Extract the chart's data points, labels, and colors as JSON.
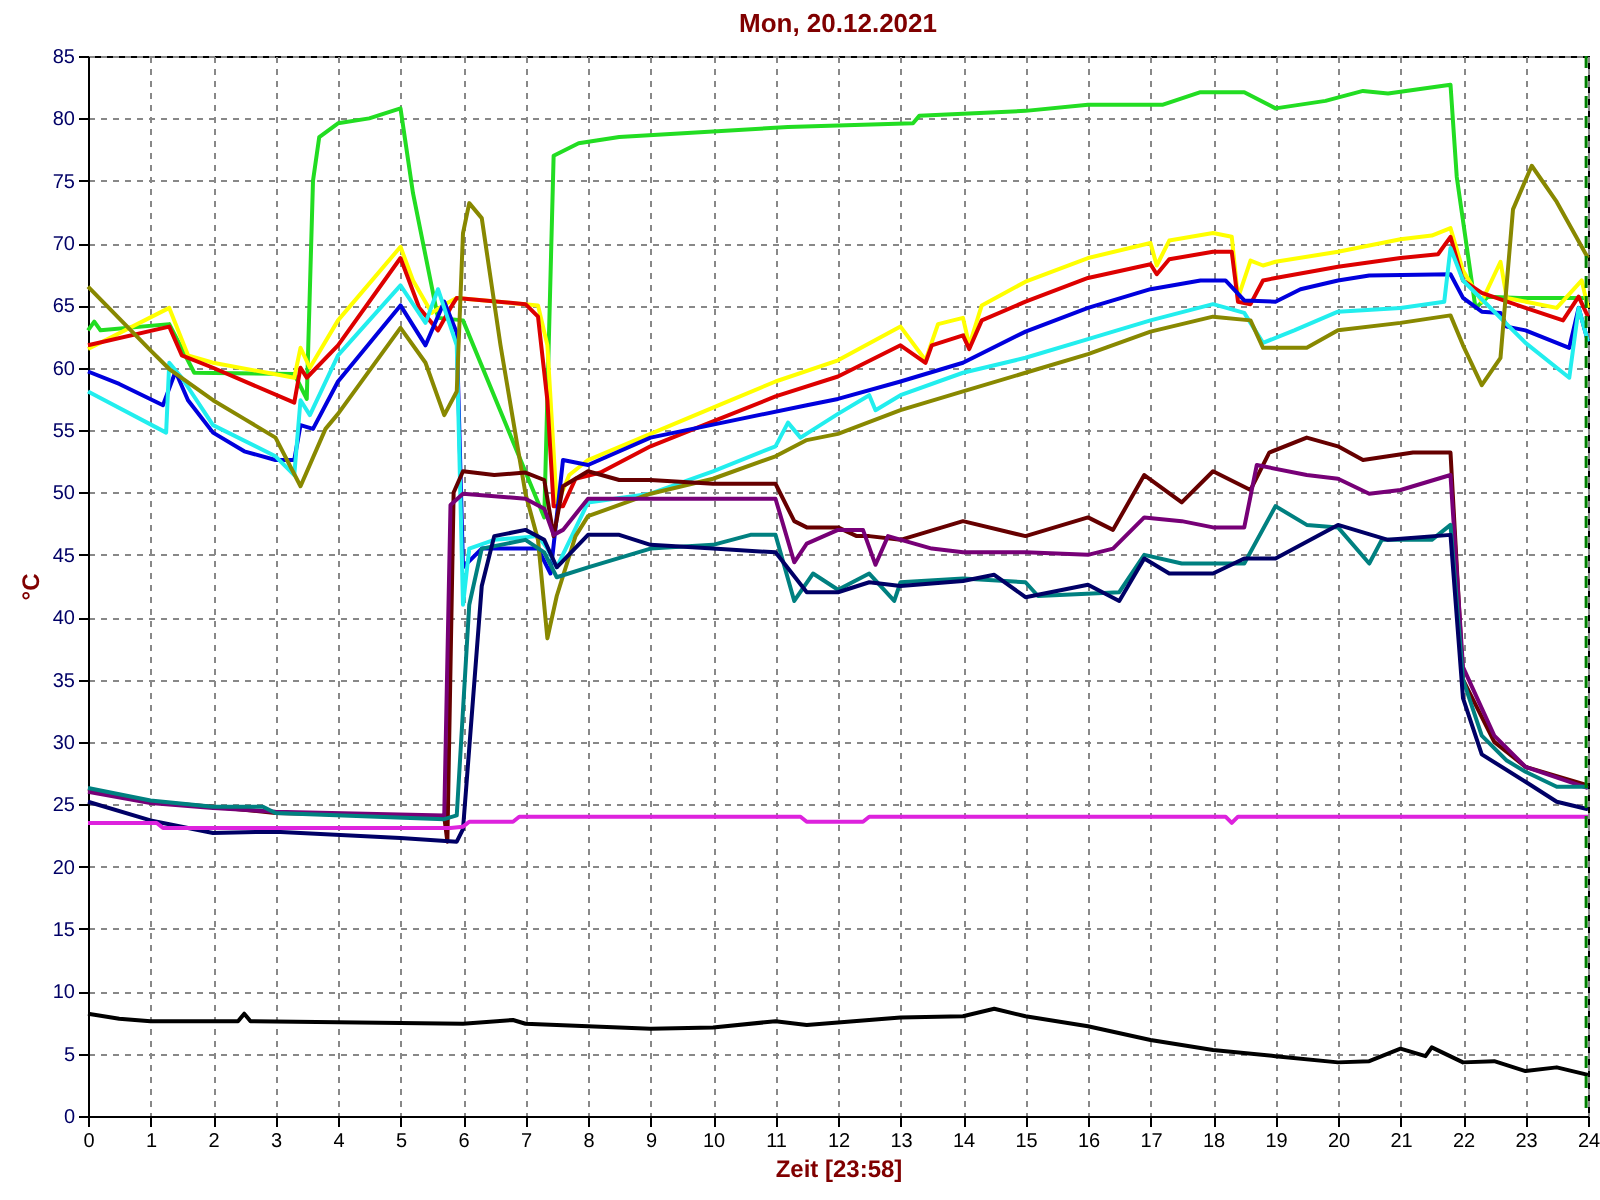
{
  "chart_data": {
    "type": "line",
    "title": "Mon, 20.12.2021",
    "xlabel": "Zeit [23:58]",
    "ylabel": "°C",
    "xlim": [
      0,
      24
    ],
    "xticks": [
      0,
      1,
      2,
      3,
      4,
      5,
      6,
      7,
      8,
      9,
      10,
      11,
      12,
      13,
      14,
      15,
      16,
      17,
      18,
      19,
      20,
      21,
      22,
      23,
      24
    ],
    "ylim": [
      0,
      85
    ],
    "yticks": [
      0,
      5,
      10,
      15,
      20,
      25,
      30,
      35,
      40,
      45,
      50,
      55,
      60,
      65,
      70,
      75,
      80,
      85
    ],
    "grid": true,
    "legend": false,
    "marker": "none",
    "line_style": "solid",
    "ref_lines": [
      {
        "axis": "x",
        "value": 23.97,
        "color": "#008000",
        "line_style": "dashed"
      }
    ],
    "series": [
      {
        "color": "#22dd22",
        "x": [
          0,
          0.1,
          0.2,
          1.3,
          1.7,
          3.3,
          3.5,
          3.6,
          3.7,
          4,
          4.5,
          5,
          5.2,
          5.6,
          6,
          7.3,
          7.45,
          7.85,
          8.5,
          11.2,
          13.2,
          13.3,
          15,
          16,
          17.2,
          17.8,
          18.5,
          19,
          19.8,
          20.4,
          20.8,
          21.8,
          21.9,
          22.2,
          22.4,
          22.9,
          23.9,
          24
        ],
        "values": [
          63,
          63.7,
          63,
          63.5,
          59.6,
          59.5,
          57.5,
          75,
          78.5,
          79.6,
          80,
          80.8,
          74,
          64,
          63.8,
          48,
          77,
          78,
          78.5,
          79.3,
          79.6,
          80.2,
          80.6,
          81.1,
          81.1,
          82.1,
          82.1,
          80.8,
          81.4,
          82.2,
          82,
          82.7,
          75.3,
          64.8,
          65.7,
          65.6,
          65.6,
          65.6
        ]
      },
      {
        "color": "#ffff00",
        "x": [
          0,
          1.3,
          1.6,
          2,
          3.3,
          3.4,
          3.55,
          4,
          5,
          5.2,
          5.5,
          5.75,
          5.9,
          7.2,
          7.35,
          7.5,
          7.7,
          8,
          9,
          10,
          11,
          12,
          13,
          13.4,
          13.6,
          14,
          14.1,
          14.3,
          15,
          16,
          17,
          17.1,
          17.3,
          18,
          18.3,
          18.4,
          18.6,
          18.8,
          19,
          20,
          21,
          21.5,
          21.8,
          22,
          22.3,
          22.6,
          22.7,
          23.5,
          23.9,
          24
        ],
        "values": [
          61.5,
          64.8,
          61,
          60.4,
          59.2,
          61.6,
          60,
          63.8,
          69.7,
          67,
          64.4,
          65.2,
          65.6,
          65,
          61.8,
          49,
          51.4,
          52.6,
          54.7,
          56.8,
          58.9,
          60.6,
          63.3,
          60.6,
          63.5,
          64,
          61.8,
          65,
          66.9,
          68.8,
          70,
          68.2,
          70.2,
          70.8,
          70.5,
          65.6,
          68.6,
          68.2,
          68.5,
          69.3,
          70.3,
          70.6,
          71.2,
          67.8,
          65.3,
          68.5,
          65.6,
          64.8,
          67,
          64.8
        ]
      },
      {
        "color": "#dd0000",
        "x": [
          0,
          1.3,
          1.5,
          2,
          3.3,
          3.4,
          3.5,
          4,
          5,
          5.3,
          5.6,
          5.8,
          5.9,
          7,
          7.2,
          7.35,
          7.45,
          7.6,
          7.8,
          8.2,
          9,
          10,
          11,
          12,
          13,
          13.4,
          13.5,
          14,
          14.1,
          14.3,
          15,
          16,
          17,
          17.1,
          17.3,
          18,
          18.3,
          18.4,
          18.6,
          18.8,
          19,
          20,
          21,
          21.6,
          21.8,
          22,
          22.3,
          23,
          23.6,
          23.85,
          24
        ],
        "values": [
          61.8,
          63.3,
          61,
          60,
          57.2,
          60,
          59.2,
          61.8,
          68.8,
          64.8,
          63,
          64.8,
          65.6,
          65.1,
          64.1,
          57.4,
          48.9,
          48.9,
          51.1,
          51.6,
          53.7,
          55.7,
          57.7,
          59.3,
          61.8,
          60.4,
          61.8,
          62.6,
          61.5,
          63.8,
          65.3,
          67.2,
          68.3,
          67.5,
          68.7,
          69.3,
          69.3,
          65.3,
          65.1,
          67,
          67.2,
          68.1,
          68.8,
          69.1,
          70.5,
          67,
          66,
          64.8,
          63.8,
          65.7,
          64.1
        ]
      },
      {
        "color": "#0000dd",
        "x": [
          0,
          0.5,
          1.2,
          1.4,
          1.6,
          2,
          2.5,
          3,
          3.3,
          3.4,
          3.6,
          4,
          5,
          5.4,
          5.7,
          5.9,
          6,
          6.3,
          7.2,
          7.4,
          7.6,
          8,
          9,
          11.5,
          12,
          13,
          14,
          15,
          16,
          17,
          17.8,
          18.2,
          18.5,
          19,
          19.4,
          20,
          20.5,
          21.8,
          22,
          22.3,
          22.6,
          22.7,
          23,
          23.7,
          23.85,
          24
        ],
        "values": [
          59.7,
          58.7,
          57,
          59.7,
          57.4,
          54.8,
          53.3,
          52.6,
          52.6,
          55.4,
          55.1,
          58.9,
          65,
          61.8,
          65.3,
          62.8,
          44,
          45.5,
          45.5,
          43.5,
          52.6,
          52.2,
          54.4,
          57,
          57.5,
          58.9,
          60.4,
          62.9,
          64.8,
          66.3,
          67,
          67,
          65.4,
          65.3,
          66.3,
          67,
          67.4,
          67.5,
          65.6,
          64.5,
          64.4,
          63.3,
          63,
          61.6,
          64.8,
          62.1
        ]
      },
      {
        "color": "#22eeee",
        "x": [
          0,
          1.25,
          1.3,
          1.5,
          2,
          3,
          3.3,
          3.4,
          3.55,
          4,
          5,
          5.4,
          5.6,
          5.8,
          5.9,
          6,
          6.1,
          6.5,
          7.2,
          7.35,
          7.5,
          8,
          9,
          10,
          11,
          11.2,
          11.4,
          12,
          12.5,
          12.6,
          13,
          14,
          15,
          16,
          17,
          18,
          18.5,
          18.8,
          19.3,
          20,
          21,
          21.7,
          21.8,
          22,
          23,
          23.7,
          23.85,
          24
        ],
        "values": [
          58.1,
          54.8,
          60.4,
          59.2,
          55.4,
          52.9,
          51.4,
          57.4,
          56.2,
          61,
          66.6,
          63.6,
          66.3,
          63.3,
          61.8,
          41,
          45.5,
          46.2,
          46.5,
          45.5,
          44,
          49.2,
          49.9,
          51.7,
          53.7,
          55.6,
          54.4,
          56.3,
          57.8,
          56.6,
          57.8,
          59.6,
          60.8,
          62.3,
          63.8,
          65.1,
          64.4,
          62,
          63,
          64.5,
          64.8,
          65.3,
          69.6,
          67,
          62,
          59.2,
          64.8,
          62.1
        ]
      },
      {
        "color": "#888800",
        "x": [
          0,
          1,
          1.3,
          2,
          2.5,
          3,
          3.4,
          3.8,
          4,
          5,
          5.4,
          5.7,
          5.9,
          6,
          6.1,
          6.3,
          6.6,
          7,
          7.2,
          7.35,
          7.5,
          7.8,
          8,
          9,
          10,
          11,
          11.5,
          12,
          13,
          14,
          15,
          16,
          17,
          18,
          18.6,
          18.8,
          19.5,
          20,
          21,
          21.8,
          22,
          22.3,
          22.6,
          22.8,
          23.1,
          23.5,
          24
        ],
        "values": [
          66.5,
          61.4,
          59.9,
          57.4,
          55.9,
          54.4,
          50.5,
          55.1,
          56.3,
          63.2,
          60.4,
          56.2,
          58.1,
          70.8,
          73.2,
          72,
          61.8,
          49.9,
          46.2,
          38.3,
          41.7,
          46.5,
          48.1,
          49.9,
          51.1,
          52.9,
          54.2,
          54.7,
          56.6,
          58.1,
          59.6,
          61.1,
          62.9,
          64.1,
          63.8,
          61.6,
          61.6,
          63,
          63.6,
          64.2,
          61.8,
          58.6,
          60.8,
          72.7,
          76.2,
          73.3,
          68.8
        ]
      },
      {
        "color": "#660000",
        "x": [
          0,
          1,
          2,
          3,
          5.7,
          5.75,
          5.85,
          6,
          6.5,
          7,
          7.3,
          7.45,
          7.6,
          8,
          8.5,
          9,
          10,
          11,
          11.3,
          11.5,
          12,
          12.3,
          12.5,
          13,
          14,
          15,
          16,
          16.4,
          16.9,
          17.5,
          18,
          18.6,
          18.9,
          19.5,
          20,
          20.4,
          20.8,
          21.2,
          21.8,
          22,
          22.5,
          23,
          24
        ],
        "values": [
          26.2,
          25.2,
          24.8,
          24.3,
          24,
          22,
          50,
          51.7,
          51.4,
          51.6,
          51,
          46.5,
          50.5,
          51.7,
          51,
          51,
          50.7,
          50.7,
          47.7,
          47.2,
          47.2,
          46.5,
          46.5,
          46.2,
          47.7,
          46.5,
          48,
          47,
          51.4,
          49.2,
          51.7,
          50.2,
          53.2,
          54.4,
          53.7,
          52.6,
          52.9,
          53.2,
          53.2,
          35,
          30,
          28,
          26.5
        ]
      },
      {
        "color": "#770077",
        "x": [
          0,
          1,
          2,
          3,
          5.7,
          5.8,
          6,
          7,
          7.3,
          7.45,
          7.6,
          8,
          9,
          11,
          11.3,
          11.5,
          12,
          12.4,
          12.6,
          12.8,
          13.5,
          14,
          15,
          16,
          16.4,
          16.9,
          17.5,
          18,
          18.5,
          18.7,
          19.5,
          20,
          20.5,
          21,
          21.8,
          22,
          22.5,
          23,
          24
        ],
        "values": [
          26,
          25.1,
          24.7,
          24.4,
          24.1,
          49,
          49.9,
          49.5,
          48.7,
          46.6,
          47,
          49.5,
          49.5,
          49.5,
          44.4,
          45.9,
          47,
          47,
          44.2,
          46.5,
          45.5,
          45.2,
          45.2,
          45,
          45.5,
          48,
          47.7,
          47.2,
          47.2,
          52.2,
          51.4,
          51.1,
          49.9,
          50.2,
          51.4,
          36,
          30.5,
          28,
          26.3
        ]
      },
      {
        "color": "#008080",
        "x": [
          0,
          1,
          2,
          2.8,
          3,
          5.7,
          5.9,
          6.1,
          6.3,
          7,
          7.3,
          7.5,
          8,
          9,
          10,
          10.6,
          11,
          11.3,
          11.6,
          12,
          12.5,
          12.9,
          13,
          14,
          15,
          15.2,
          16.5,
          16.9,
          17.5,
          18,
          18.5,
          19,
          19.5,
          20,
          20.5,
          20.7,
          21.5,
          21.8,
          22,
          22.3,
          22.7,
          23,
          23.5,
          24
        ],
        "values": [
          26.3,
          25.3,
          24.8,
          24.8,
          24.3,
          23.8,
          24.1,
          41,
          45.5,
          46.2,
          45.2,
          43.2,
          44,
          45.5,
          45.8,
          46.6,
          46.6,
          41.3,
          43.5,
          42.2,
          43.5,
          41.3,
          42.8,
          43.1,
          42.8,
          41.7,
          42,
          45,
          44.3,
          44.3,
          44.3,
          48.9,
          47.4,
          47.2,
          44.3,
          46.2,
          46.2,
          47.4,
          35,
          30.5,
          28.5,
          27.6,
          26.4,
          26.4
        ]
      },
      {
        "color": "#000066",
        "x": [
          0,
          1,
          2,
          3,
          5,
          5.9,
          6,
          6.3,
          6.5,
          7,
          7.3,
          7.5,
          8,
          8.5,
          9,
          10,
          11,
          11.5,
          12,
          12.5,
          13,
          14,
          14.5,
          15,
          16,
          16.5,
          16.9,
          17.3,
          18,
          18.5,
          19,
          20,
          20.8,
          21.8,
          22,
          22.3,
          23,
          23.5,
          24
        ],
        "values": [
          25.2,
          23.7,
          22.7,
          22.8,
          22.3,
          22,
          23,
          42.5,
          46.5,
          47,
          46.2,
          44,
          46.6,
          46.6,
          45.8,
          45.5,
          45.2,
          42,
          42,
          42.8,
          42.5,
          42.9,
          43.4,
          41.6,
          42.6,
          41.3,
          44.7,
          43.5,
          43.5,
          44.7,
          44.7,
          47.4,
          46.2,
          46.6,
          33.5,
          29,
          26.8,
          25.2,
          24.6
        ]
      },
      {
        "color": "#dd22dd",
        "x": [
          0,
          1.1,
          1.2,
          5.8,
          6,
          6.1,
          6.8,
          6.9,
          11.4,
          11.5,
          12.4,
          12.5,
          18.2,
          18.3,
          18.4,
          24
        ],
        "values": [
          23.5,
          23.5,
          23.1,
          23.1,
          23.2,
          23.6,
          23.6,
          24,
          24,
          23.6,
          23.6,
          24,
          24,
          23.5,
          24,
          24
        ]
      },
      {
        "color": "#000000",
        "x": [
          0,
          0.5,
          1,
          2.4,
          2.5,
          2.6,
          6,
          6.8,
          7,
          8,
          9,
          10,
          11,
          11.5,
          12,
          13,
          14,
          14.5,
          15,
          16,
          17,
          18,
          19,
          20,
          20.5,
          21,
          21.4,
          21.5,
          22,
          22.5,
          23,
          23.5,
          24
        ],
        "values": [
          8.2,
          7.8,
          7.6,
          7.6,
          8.2,
          7.6,
          7.4,
          7.7,
          7.4,
          7.2,
          7,
          7.1,
          7.6,
          7.3,
          7.5,
          7.9,
          8,
          8.6,
          8,
          7.2,
          6.1,
          5.3,
          4.8,
          4.3,
          4.4,
          5.4,
          4.8,
          5.5,
          4.3,
          4.4,
          3.6,
          3.9,
          3.3
        ]
      }
    ]
  }
}
